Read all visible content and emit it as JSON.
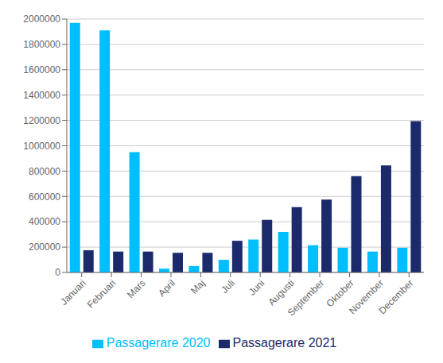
{
  "chart_data": {
    "type": "bar",
    "categories": [
      "Januari",
      "Februari",
      "Mars",
      "April",
      "Maj",
      "Juli",
      "Juni",
      "Augusti",
      "September",
      "Oktober",
      "November",
      "December"
    ],
    "series": [
      {
        "name": "Passagerare 2020",
        "color": "#00BFFF",
        "values": [
          1970000,
          1910000,
          950000,
          30000,
          50000,
          100000,
          260000,
          320000,
          215000,
          195000,
          165000,
          195000
        ]
      },
      {
        "name": "Passagerare 2021",
        "color": "#1B2A6B",
        "values": [
          175000,
          165000,
          165000,
          155000,
          155000,
          250000,
          415000,
          515000,
          575000,
          760000,
          845000,
          1195000
        ]
      }
    ],
    "ylim": [
      0,
      2000000
    ],
    "yticks": [
      0,
      200000,
      400000,
      600000,
      800000,
      1000000,
      1200000,
      1400000,
      1600000,
      1800000,
      2000000
    ],
    "grid": true,
    "legend": "bottom"
  }
}
